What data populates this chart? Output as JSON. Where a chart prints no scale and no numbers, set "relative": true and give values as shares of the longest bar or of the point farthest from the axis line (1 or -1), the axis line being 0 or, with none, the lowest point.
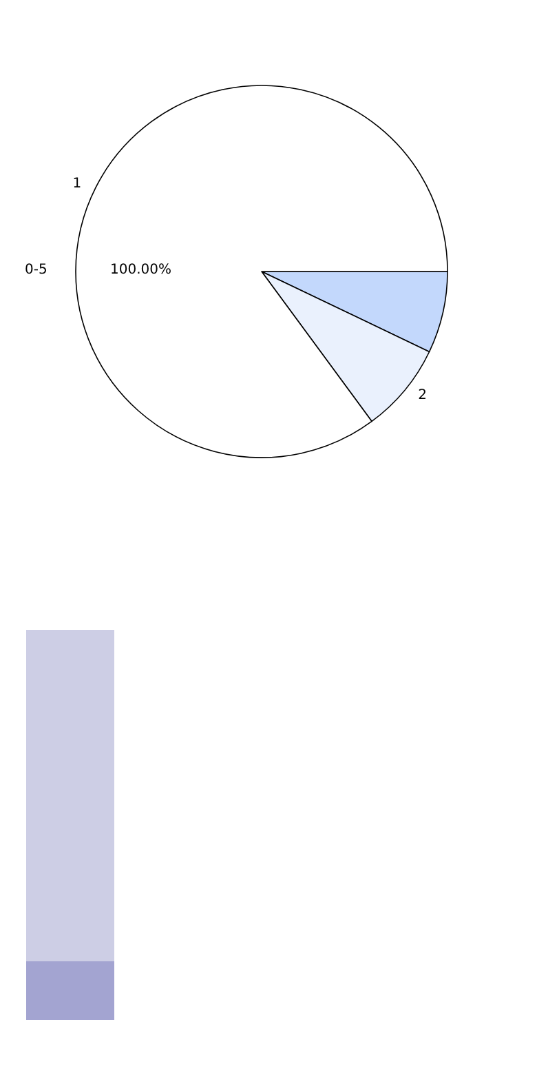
{
  "chart_data": [
    {
      "type": "pie",
      "categories": [
        null,
        "2",
        "1"
      ],
      "values": [
        7.1,
        7.8,
        85.1
      ],
      "colors": [
        "#c3d8fc",
        "#eaf1fd",
        "#ffffff"
      ],
      "annotations": [
        "0-5",
        "100.00%"
      ]
    },
    {
      "type": "bar",
      "relative": true,
      "stacked": true,
      "categories": [
        null
      ],
      "series": [
        {
          "color": "#a3a4d1",
          "values": [
            0.15
          ]
        },
        {
          "color": "#cdcee5",
          "values": [
            0.85
          ]
        }
      ]
    }
  ]
}
